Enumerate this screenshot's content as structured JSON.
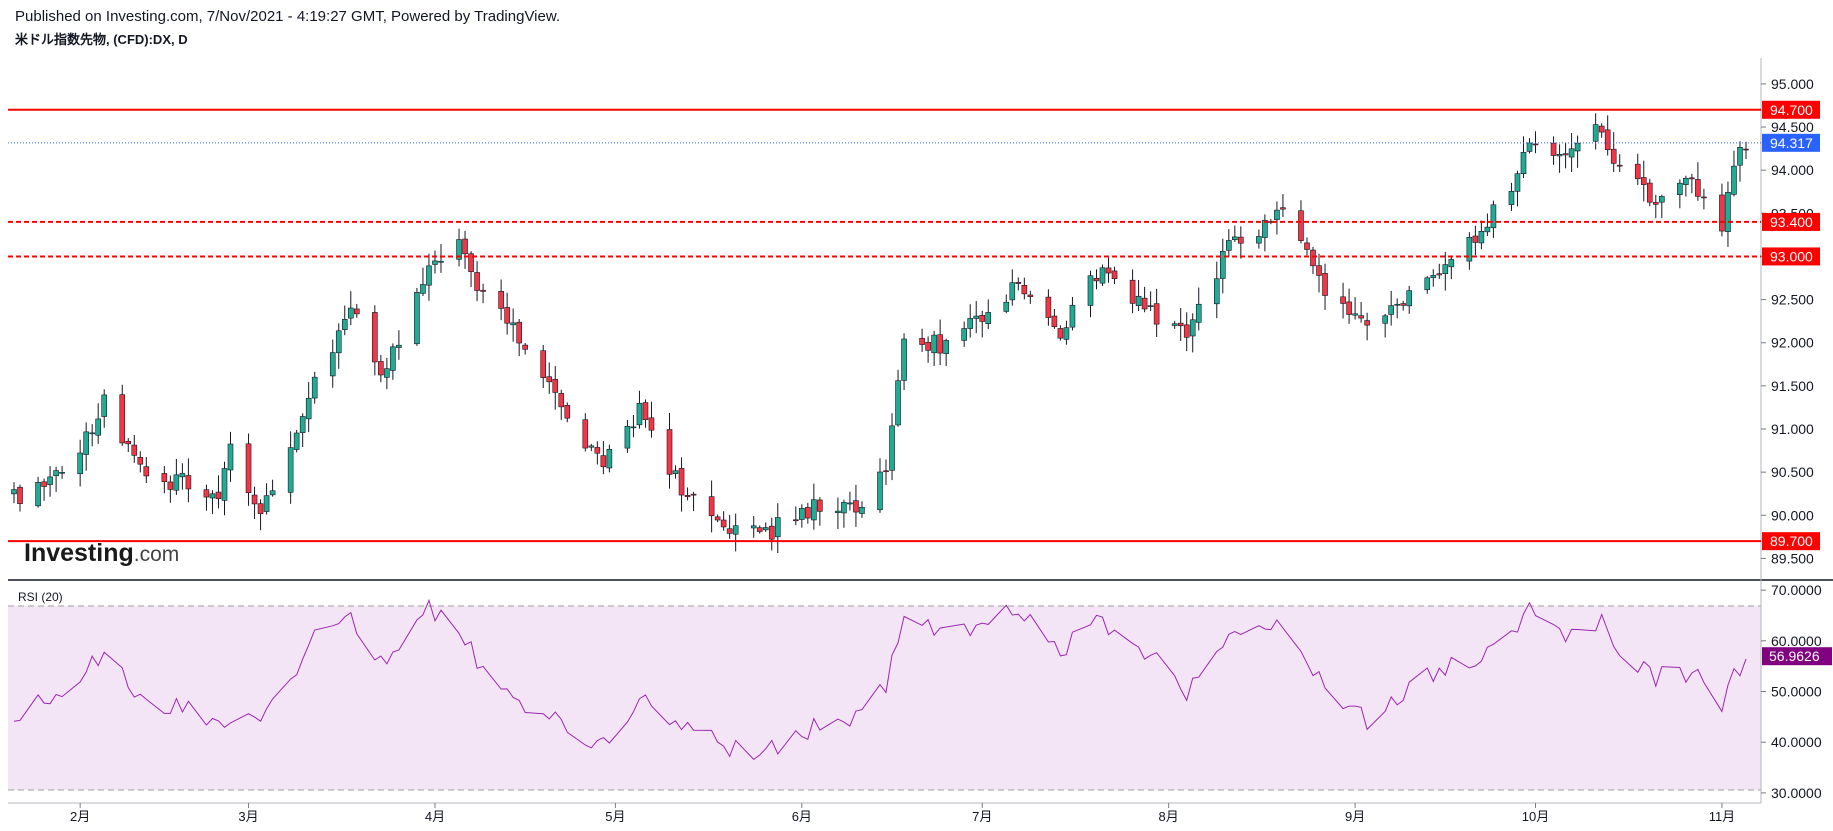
{
  "header": {
    "published": "Published on Investing.com, 7/Nov/2021 - 4:19:27 GMT, Powered by TradingView.",
    "symbol": "米ドル指数先物, (CFD):DX, D"
  },
  "logo": {
    "brand": "Investing",
    "suffix": ".com"
  },
  "colors": {
    "up": "#22ab94",
    "down": "#f23645",
    "level": "#ff0000",
    "last": "#2962ff",
    "rsi_line": "#9c27b0",
    "rsi_band": "#f3e5f5"
  },
  "chart_data": [
    {
      "type": "candlestick",
      "symbol": "米ドル指数先物, (CFD):DX, D",
      "ylim": [
        89.25,
        95.3
      ],
      "y_ticks": [
        "89.500",
        "90.000",
        "90.500",
        "91.000",
        "91.500",
        "92.000",
        "92.500",
        "93.000",
        "93.500",
        "94.000",
        "94.500",
        "95.000"
      ],
      "x_tick_labels": [
        "2月",
        "3月",
        "4月",
        "5月",
        "6月",
        "7月",
        "8月",
        "9月",
        "10月",
        "11月"
      ],
      "month_starts": [
        "2021-02-01",
        "2021-03-01",
        "2021-04-01",
        "2021-05-01",
        "2021-06-01",
        "2021-07-01",
        "2021-08-01",
        "2021-09-01",
        "2021-10-01",
        "2021-11-01"
      ],
      "range": [
        "2021-01-21",
        "2021-11-05"
      ],
      "last_price": "94.317",
      "levels": [
        {
          "value": 94.7,
          "label": "94.700",
          "style": "solid"
        },
        {
          "value": 93.4,
          "label": "93.400",
          "style": "dashed"
        },
        {
          "value": 93.0,
          "label": "93.000",
          "style": "dashed"
        },
        {
          "value": 89.7,
          "label": "89.700",
          "style": "solid"
        }
      ],
      "close_path": [
        [
          "2021-01-21",
          90.2
        ],
        [
          "2021-01-28",
          90.45
        ],
        [
          "2021-02-04",
          91.05
        ],
        [
          "2021-02-05",
          91.35
        ],
        [
          "2021-02-12",
          90.35
        ],
        [
          "2021-02-19",
          90.4
        ],
        [
          "2021-02-24",
          90.1
        ],
        [
          "2021-02-26",
          90.8
        ],
        [
          "2021-03-03",
          90.0
        ],
        [
          "2021-03-09",
          90.9
        ],
        [
          "2021-03-12",
          91.5
        ],
        [
          "2021-03-18",
          92.45
        ],
        [
          "2021-03-23",
          91.55
        ],
        [
          "2021-03-31",
          92.9
        ],
        [
          "2021-04-05",
          93.25
        ],
        [
          "2021-04-09",
          92.5
        ],
        [
          "2021-04-15",
          92.1
        ],
        [
          "2021-04-22",
          91.25
        ],
        [
          "2021-04-29",
          90.55
        ],
        [
          "2021-05-05",
          91.2
        ],
        [
          "2021-05-10",
          90.5
        ],
        [
          "2021-05-14",
          90.15
        ],
        [
          "2021-05-20",
          89.85
        ],
        [
          "2021-05-25",
          89.75
        ],
        [
          "2021-06-03",
          90.1
        ],
        [
          "2021-06-09",
          90.05
        ],
        [
          "2021-06-15",
          90.5
        ],
        [
          "2021-06-18",
          92.1
        ],
        [
          "2021-06-25",
          91.95
        ],
        [
          "2021-07-07",
          92.65
        ],
        [
          "2021-07-14",
          92.1
        ],
        [
          "2021-07-21",
          92.9
        ],
        [
          "2021-07-28",
          92.4
        ],
        [
          "2021-08-04",
          92.1
        ],
        [
          "2021-08-11",
          93.1
        ],
        [
          "2021-08-20",
          93.5
        ],
        [
          "2021-08-27",
          92.6
        ],
        [
          "2021-09-03",
          92.2
        ],
        [
          "2021-09-10",
          92.55
        ],
        [
          "2021-09-17",
          92.9
        ],
        [
          "2021-09-22",
          93.3
        ],
        [
          "2021-09-28",
          93.9
        ],
        [
          "2021-09-30",
          94.3
        ],
        [
          "2021-10-06",
          94.15
        ],
        [
          "2021-10-12",
          94.5
        ],
        [
          "2021-10-15",
          93.95
        ],
        [
          "2021-10-21",
          93.65
        ],
        [
          "2021-10-27",
          93.85
        ],
        [
          "2021-11-01",
          93.4
        ],
        [
          "2021-11-03",
          94.15
        ],
        [
          "2021-11-05",
          94.32
        ]
      ]
    },
    {
      "type": "line",
      "title": "RSI (20)",
      "ylim": [
        28,
        72
      ],
      "y_ticks": [
        "30.0000",
        "40.0000",
        "50.0000",
        "60.0000",
        "70.0000"
      ],
      "band": [
        30,
        70
      ],
      "last_value": "56.9626",
      "path": [
        [
          "2021-01-21",
          45
        ],
        [
          "2021-01-28",
          50
        ],
        [
          "2021-02-04",
          56
        ],
        [
          "2021-02-05",
          59
        ],
        [
          "2021-02-12",
          47
        ],
        [
          "2021-02-19",
          48
        ],
        [
          "2021-02-24",
          43
        ],
        [
          "2021-02-26",
          45
        ],
        [
          "2021-03-03",
          45
        ],
        [
          "2021-03-09",
          55
        ],
        [
          "2021-03-12",
          61
        ],
        [
          "2021-03-18",
          65
        ],
        [
          "2021-03-23",
          56
        ],
        [
          "2021-03-31",
          66
        ],
        [
          "2021-04-05",
          63
        ],
        [
          "2021-04-09",
          54
        ],
        [
          "2021-04-15",
          47
        ],
        [
          "2021-04-22",
          44
        ],
        [
          "2021-04-29",
          39
        ],
        [
          "2021-05-05",
          49
        ],
        [
          "2021-05-10",
          45
        ],
        [
          "2021-05-14",
          42
        ],
        [
          "2021-05-20",
          39
        ],
        [
          "2021-05-25",
          38
        ],
        [
          "2021-06-03",
          43
        ],
        [
          "2021-06-09",
          45
        ],
        [
          "2021-06-15",
          51
        ],
        [
          "2021-06-18",
          65
        ],
        [
          "2021-06-25",
          61
        ],
        [
          "2021-07-07",
          66
        ],
        [
          "2021-07-14",
          58
        ],
        [
          "2021-07-21",
          64
        ],
        [
          "2021-07-28",
          58
        ],
        [
          "2021-08-04",
          50
        ],
        [
          "2021-08-11",
          60
        ],
        [
          "2021-08-20",
          63
        ],
        [
          "2021-08-27",
          52
        ],
        [
          "2021-09-03",
          44
        ],
        [
          "2021-09-10",
          51
        ],
        [
          "2021-09-17",
          55
        ],
        [
          "2021-09-22",
          57
        ],
        [
          "2021-09-28",
          62
        ],
        [
          "2021-09-30",
          67
        ],
        [
          "2021-10-06",
          60
        ],
        [
          "2021-10-12",
          64
        ],
        [
          "2021-10-15",
          57
        ],
        [
          "2021-10-21",
          53
        ],
        [
          "2021-10-27",
          54
        ],
        [
          "2021-11-01",
          47
        ],
        [
          "2021-11-03",
          53
        ],
        [
          "2021-11-05",
          57
        ]
      ]
    }
  ]
}
